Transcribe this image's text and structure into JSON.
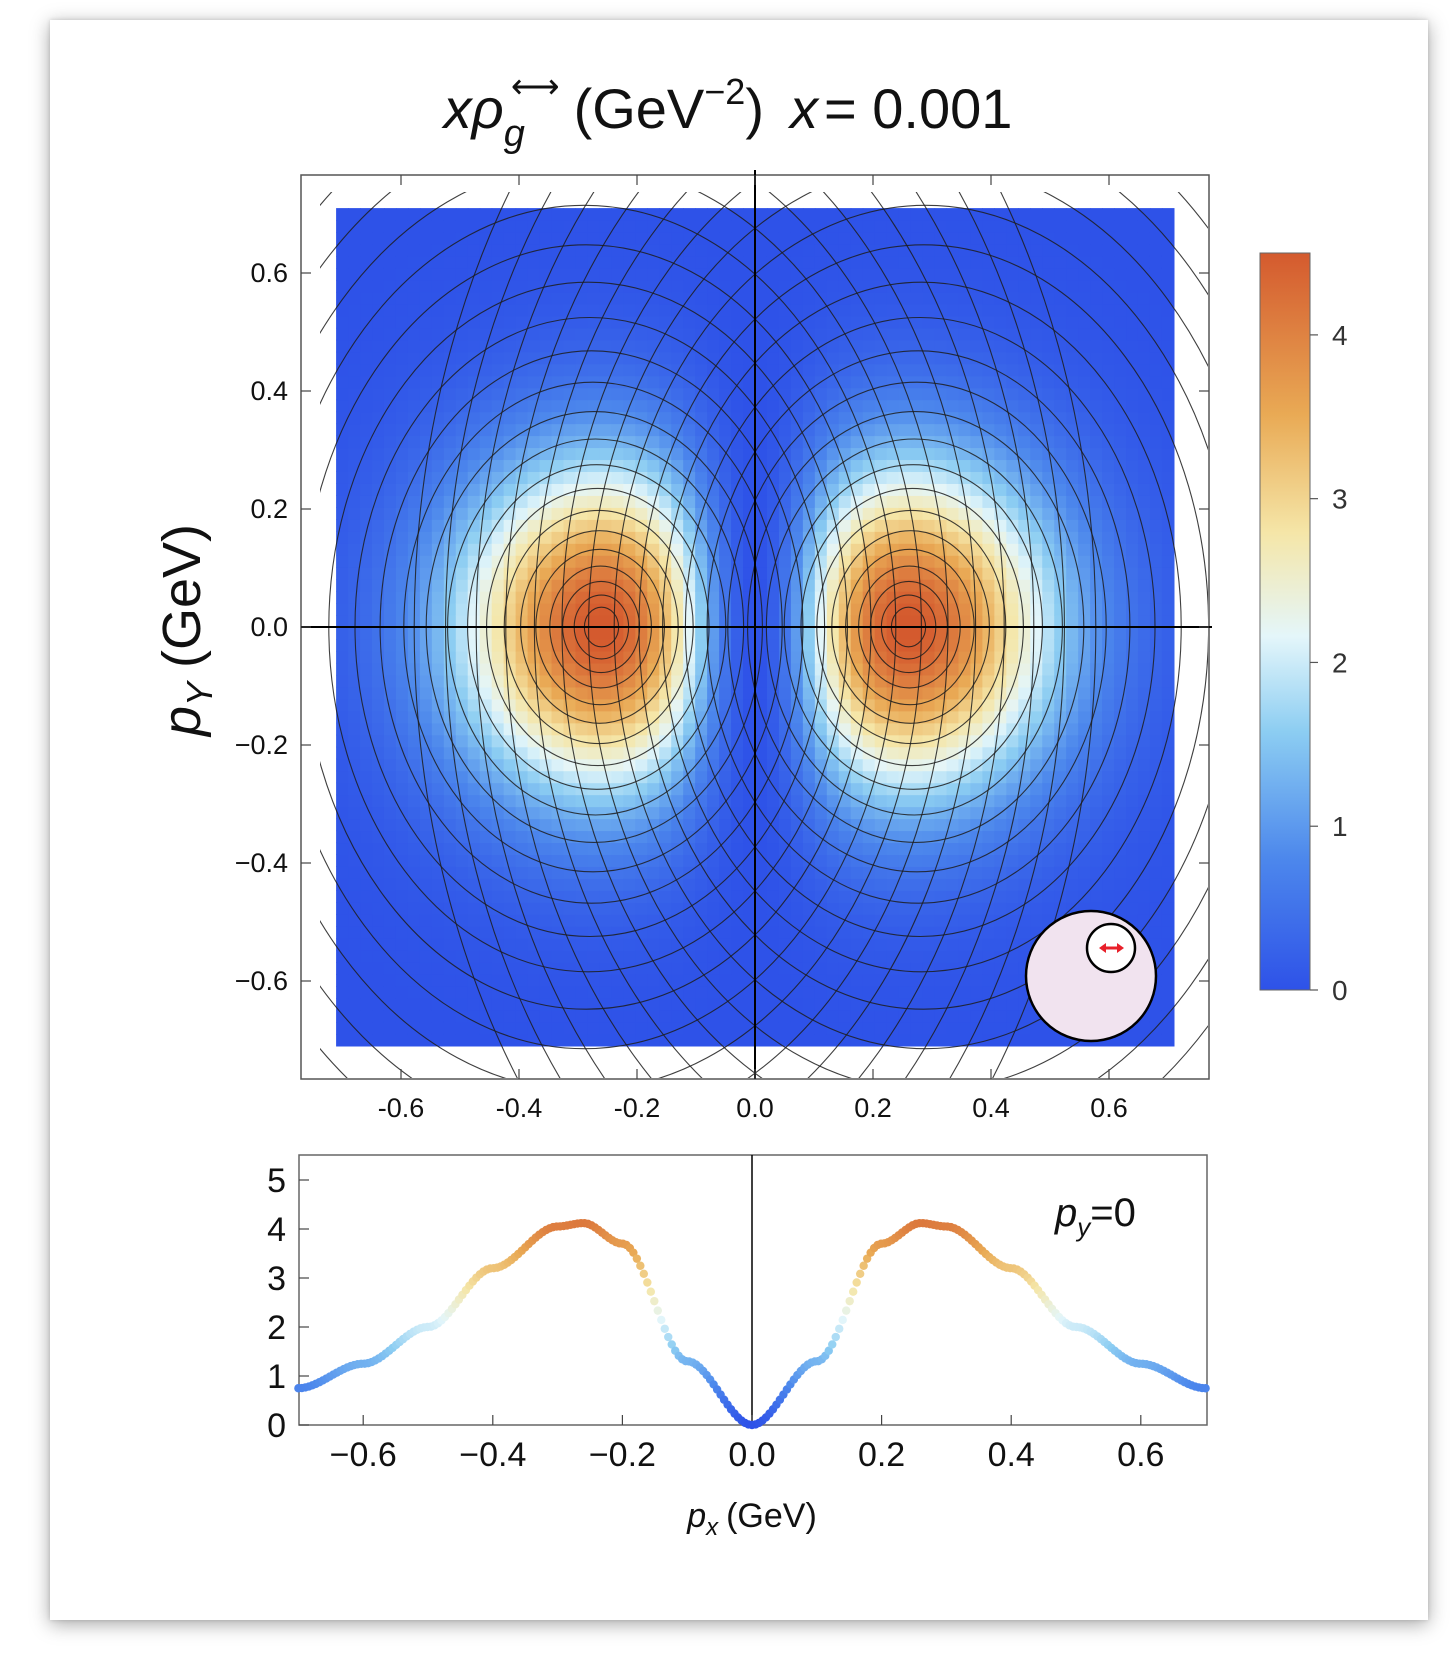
{
  "title": {
    "x": "x",
    "rho": "ρ",
    "sub": "g",
    "sup_arrow": "⟷",
    "unit": "(GeV",
    "unit_exp": "−2",
    "unit_close": ")",
    "xeq": "x",
    "xval": "= 0.001"
  },
  "ylabel_main": "p",
  "ylabel_sub": "Y",
  "ylabel_unit": "(GeV)",
  "inset_label": {
    "p": "p",
    "sub": "y",
    "rest": "=0"
  },
  "xlabel_bottom": {
    "p": "p",
    "sub": "x",
    "rest": "(GeV)"
  },
  "colors": {
    "low": "#2e52e8",
    "mid": "#e8f7fb",
    "high": "#d8602c",
    "contour": "#222222",
    "badge_fill": "#f1e3ef",
    "badge_arrow": "#e8202a"
  },
  "chart_data": [
    {
      "type": "heatmap",
      "xlim": [
        -0.7,
        0.7
      ],
      "ylim": [
        -0.7,
        0.7
      ],
      "x_ticks": [
        "-0.6",
        "-0.4",
        "-0.2",
        "0.0",
        "0.2",
        "0.4",
        "0.6"
      ],
      "y_ticks": [
        "0.6",
        "0.4",
        "0.2",
        "0.0",
        "−0.2",
        "−0.4",
        "−0.6"
      ],
      "peaks": [
        {
          "x": -0.26,
          "y": 0.0,
          "value": 4.4
        },
        {
          "x": 0.26,
          "y": 0.0,
          "value": 4.4
        }
      ],
      "colorbar": {
        "range": [
          0,
          4.5
        ],
        "ticks": [
          "4",
          "3",
          "2",
          "1",
          "0"
        ]
      }
    },
    {
      "type": "line",
      "xlim": [
        -0.7,
        0.7
      ],
      "ylim": [
        0,
        5.2
      ],
      "x_ticks": [
        "−0.6",
        "−0.4",
        "−0.2",
        "0.0",
        "0.2",
        "0.4",
        "0.6"
      ],
      "y_ticks": [
        "5",
        "4",
        "3",
        "2",
        "1",
        "0"
      ],
      "x": [
        -0.7,
        -0.6,
        -0.5,
        -0.4,
        -0.3,
        -0.26,
        -0.2,
        -0.1,
        0.0,
        0.1,
        0.2,
        0.26,
        0.3,
        0.4,
        0.5,
        0.6,
        0.7
      ],
      "y": [
        0.75,
        1.25,
        2.0,
        3.2,
        4.05,
        4.12,
        3.7,
        1.3,
        0.0,
        1.3,
        3.7,
        4.12,
        4.05,
        3.2,
        2.0,
        1.25,
        0.75
      ]
    }
  ]
}
